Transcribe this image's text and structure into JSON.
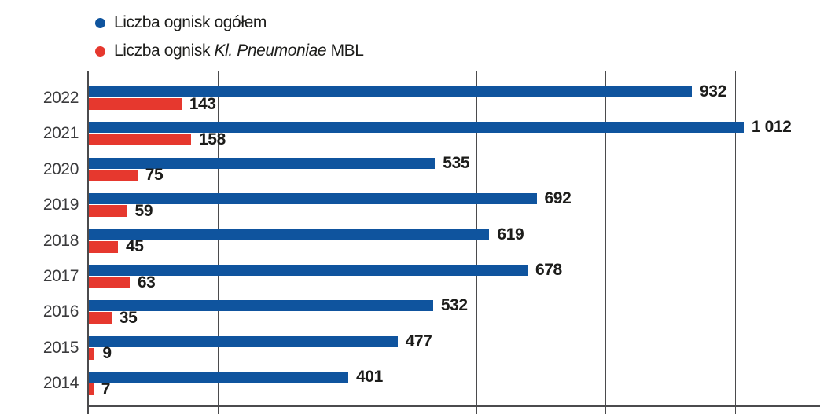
{
  "colors": {
    "total_bar": "#0f549e",
    "mbl_bar": "#e6382e",
    "grid": "#4b4b4d",
    "value_text": "#1c1c1a",
    "year_text": "#3b3b3d"
  },
  "legend": {
    "total": {
      "label": "Liczba ognisk ogółem"
    },
    "mbl": {
      "prefix": "Liczba ognisk ",
      "italic": "Kl. Pneumoniae",
      "suffix": " MBL"
    }
  },
  "chart_data": {
    "type": "bar",
    "orientation": "horizontal",
    "title": "",
    "xlabel": "",
    "ylabel": "",
    "categories": [
      "2022",
      "2021",
      "2020",
      "2019",
      "2018",
      "2017",
      "2016",
      "2015",
      "2014"
    ],
    "series": [
      {
        "name": "Liczba ognisk ogółem",
        "color": "#0f549e",
        "values": [
          932,
          1012,
          535,
          692,
          619,
          678,
          532,
          477,
          401
        ],
        "labels": [
          "932",
          "1 012",
          "535",
          "692",
          "619",
          "678",
          "532",
          "477",
          "401"
        ]
      },
      {
        "name": "Liczba ognisk Kl. Pneumoniae MBL",
        "color": "#e6382e",
        "values": [
          143,
          158,
          75,
          59,
          45,
          63,
          35,
          9,
          7
        ],
        "labels": [
          "143",
          "158",
          "75",
          "59",
          "45",
          "63",
          "35",
          "9",
          "7"
        ]
      }
    ],
    "xlim": [
      0,
      1000
    ],
    "gridline_values": [
      0,
      200,
      400,
      600,
      800,
      1000
    ],
    "grid": true,
    "tick_labels_visible": false,
    "legend_position": "top-left"
  }
}
